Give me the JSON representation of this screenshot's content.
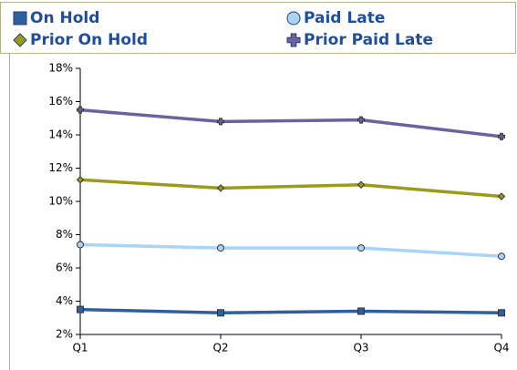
{
  "chart_data": {
    "type": "line",
    "categories": [
      "Q1",
      "Q2",
      "Q3",
      "Q4"
    ],
    "series": [
      {
        "name": "On Hold",
        "color": "#2e5f9e",
        "marker": "square",
        "values": [
          3.5,
          3.3,
          3.4,
          3.3
        ]
      },
      {
        "name": "Paid Late",
        "color": "#a8d4f5",
        "marker": "circle",
        "values": [
          7.4,
          7.2,
          7.2,
          6.7
        ]
      },
      {
        "name": "Prior On Hold",
        "color": "#9c9a1a",
        "marker": "diamond",
        "values": [
          11.3,
          10.8,
          11.0,
          10.3
        ]
      },
      {
        "name": "Prior Paid Late",
        "color": "#6b62a0",
        "marker": "cross",
        "values": [
          15.5,
          14.8,
          14.9,
          13.9
        ]
      }
    ],
    "ylim": [
      2,
      18
    ],
    "yticks": [
      {
        "value": 2,
        "label": "2%"
      },
      {
        "value": 4,
        "label": "4%"
      },
      {
        "value": 6,
        "label": "6%"
      },
      {
        "value": 8,
        "label": "8%"
      },
      {
        "value": 10,
        "label": "10%"
      },
      {
        "value": 12,
        "label": "12%"
      },
      {
        "value": 14,
        "label": "14%"
      },
      {
        "value": 16,
        "label": "16%"
      },
      {
        "value": 18,
        "label": "18%"
      }
    ],
    "grid": false
  }
}
